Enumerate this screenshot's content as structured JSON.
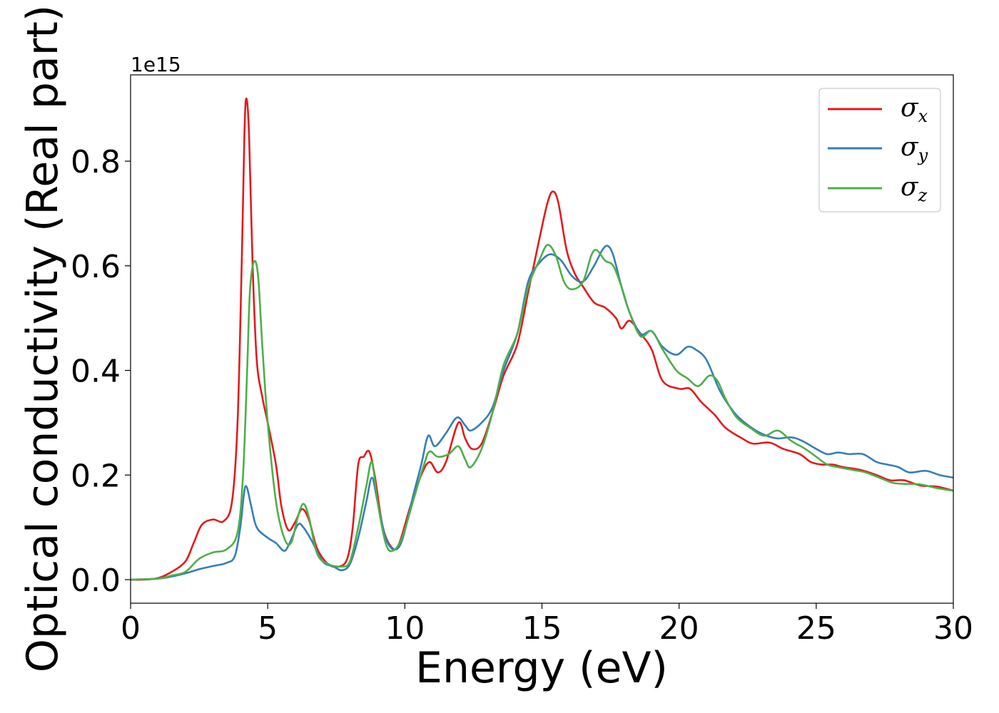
{
  "chart_data": {
    "type": "line",
    "xlabel": "Energy (eV)",
    "ylabel": "Optical conductivity (Real part)",
    "y_offset_label": "1e15",
    "xlim": [
      0,
      30
    ],
    "ylim": [
      -0.045,
      0.965
    ],
    "xticks": [
      0,
      5,
      10,
      15,
      20,
      25,
      30
    ],
    "yticks": [
      0.0,
      0.2,
      0.4,
      0.6,
      0.8
    ],
    "xtick_labels": [
      "0",
      "5",
      "10",
      "15",
      "20",
      "25",
      "30"
    ],
    "ytick_labels": [
      "0.0",
      "0.2",
      "0.4",
      "0.6",
      "0.8"
    ],
    "grid": false,
    "legend": {
      "placement": "top-right"
    },
    "series": [
      {
        "name": "σx",
        "symbol": "σ",
        "subscript": "x",
        "color": "#e41a1c",
        "points": [
          [
            0,
            0
          ],
          [
            0.5,
            0
          ],
          [
            1,
            0.003
          ],
          [
            1.5,
            0.015
          ],
          [
            2,
            0.035
          ],
          [
            2.3,
            0.07
          ],
          [
            2.6,
            0.105
          ],
          [
            3,
            0.115
          ],
          [
            3.4,
            0.112
          ],
          [
            3.7,
            0.15
          ],
          [
            3.9,
            0.3
          ],
          [
            4.05,
            0.6
          ],
          [
            4.15,
            0.85
          ],
          [
            4.22,
            0.92
          ],
          [
            4.32,
            0.85
          ],
          [
            4.45,
            0.6
          ],
          [
            4.6,
            0.42
          ],
          [
            4.8,
            0.35
          ],
          [
            5,
            0.3
          ],
          [
            5.3,
            0.22
          ],
          [
            5.5,
            0.14
          ],
          [
            5.75,
            0.095
          ],
          [
            6,
            0.11
          ],
          [
            6.25,
            0.135
          ],
          [
            6.5,
            0.115
          ],
          [
            6.8,
            0.06
          ],
          [
            7.2,
            0.03
          ],
          [
            7.6,
            0.025
          ],
          [
            7.9,
            0.04
          ],
          [
            8.1,
            0.1
          ],
          [
            8.3,
            0.22
          ],
          [
            8.5,
            0.235
          ],
          [
            8.7,
            0.245
          ],
          [
            8.9,
            0.2
          ],
          [
            9.2,
            0.1
          ],
          [
            9.55,
            0.06
          ],
          [
            9.8,
            0.07
          ],
          [
            10.2,
            0.14
          ],
          [
            10.6,
            0.2
          ],
          [
            10.9,
            0.225
          ],
          [
            11.2,
            0.205
          ],
          [
            11.5,
            0.225
          ],
          [
            11.95,
            0.3
          ],
          [
            12.2,
            0.27
          ],
          [
            12.45,
            0.25
          ],
          [
            12.8,
            0.26
          ],
          [
            13.2,
            0.32
          ],
          [
            13.6,
            0.39
          ],
          [
            14.1,
            0.45
          ],
          [
            14.5,
            0.55
          ],
          [
            14.9,
            0.65
          ],
          [
            15.2,
            0.72
          ],
          [
            15.4,
            0.742
          ],
          [
            15.6,
            0.72
          ],
          [
            15.9,
            0.63
          ],
          [
            16.2,
            0.585
          ],
          [
            16.5,
            0.56
          ],
          [
            16.9,
            0.53
          ],
          [
            17.3,
            0.52
          ],
          [
            17.7,
            0.5
          ],
          [
            17.9,
            0.48
          ],
          [
            18.2,
            0.495
          ],
          [
            18.6,
            0.47
          ],
          [
            19,
            0.44
          ],
          [
            19.4,
            0.38
          ],
          [
            20,
            0.365
          ],
          [
            20.4,
            0.365
          ],
          [
            20.8,
            0.34
          ],
          [
            21.3,
            0.315
          ],
          [
            21.7,
            0.29
          ],
          [
            22.3,
            0.27
          ],
          [
            22.7,
            0.26
          ],
          [
            23.3,
            0.262
          ],
          [
            23.8,
            0.25
          ],
          [
            24.4,
            0.24
          ],
          [
            24.8,
            0.225
          ],
          [
            25.2,
            0.22
          ],
          [
            25.6,
            0.22
          ],
          [
            26,
            0.215
          ],
          [
            26.6,
            0.21
          ],
          [
            27.2,
            0.2
          ],
          [
            27.7,
            0.19
          ],
          [
            28.2,
            0.19
          ],
          [
            28.8,
            0.18
          ],
          [
            29.4,
            0.178
          ],
          [
            30,
            0.17
          ]
        ]
      },
      {
        "name": "σy",
        "symbol": "σ",
        "subscript": "y",
        "color": "#377eb8",
        "points": [
          [
            0,
            0
          ],
          [
            1,
            0.002
          ],
          [
            1.5,
            0.006
          ],
          [
            2,
            0.012
          ],
          [
            2.5,
            0.02
          ],
          [
            3,
            0.026
          ],
          [
            3.5,
            0.032
          ],
          [
            3.8,
            0.045
          ],
          [
            4,
            0.1
          ],
          [
            4.15,
            0.17
          ],
          [
            4.25,
            0.175
          ],
          [
            4.4,
            0.14
          ],
          [
            4.6,
            0.1
          ],
          [
            5,
            0.08
          ],
          [
            5.3,
            0.07
          ],
          [
            5.6,
            0.055
          ],
          [
            5.8,
            0.07
          ],
          [
            6.1,
            0.105
          ],
          [
            6.3,
            0.1
          ],
          [
            6.6,
            0.075
          ],
          [
            7,
            0.035
          ],
          [
            7.4,
            0.025
          ],
          [
            7.7,
            0.018
          ],
          [
            8,
            0.03
          ],
          [
            8.3,
            0.08
          ],
          [
            8.6,
            0.15
          ],
          [
            8.8,
            0.195
          ],
          [
            9,
            0.15
          ],
          [
            9.3,
            0.08
          ],
          [
            9.6,
            0.058
          ],
          [
            9.9,
            0.075
          ],
          [
            10.3,
            0.16
          ],
          [
            10.6,
            0.22
          ],
          [
            10.85,
            0.275
          ],
          [
            11.1,
            0.255
          ],
          [
            11.5,
            0.28
          ],
          [
            11.9,
            0.31
          ],
          [
            12.2,
            0.295
          ],
          [
            12.4,
            0.285
          ],
          [
            12.8,
            0.3
          ],
          [
            13.2,
            0.33
          ],
          [
            13.6,
            0.4
          ],
          [
            14.1,
            0.47
          ],
          [
            14.5,
            0.57
          ],
          [
            14.9,
            0.605
          ],
          [
            15.3,
            0.622
          ],
          [
            15.7,
            0.61
          ],
          [
            16.1,
            0.58
          ],
          [
            16.5,
            0.57
          ],
          [
            16.9,
            0.6
          ],
          [
            17.2,
            0.63
          ],
          [
            17.4,
            0.638
          ],
          [
            17.6,
            0.62
          ],
          [
            17.9,
            0.56
          ],
          [
            18.2,
            0.51
          ],
          [
            18.6,
            0.47
          ],
          [
            19,
            0.475
          ],
          [
            19.4,
            0.445
          ],
          [
            19.9,
            0.43
          ],
          [
            20.3,
            0.445
          ],
          [
            20.6,
            0.44
          ],
          [
            21,
            0.42
          ],
          [
            21.5,
            0.36
          ],
          [
            22,
            0.32
          ],
          [
            22.4,
            0.3
          ],
          [
            22.8,
            0.285
          ],
          [
            23.2,
            0.275
          ],
          [
            23.6,
            0.27
          ],
          [
            24.1,
            0.272
          ],
          [
            24.5,
            0.265
          ],
          [
            25,
            0.25
          ],
          [
            25.4,
            0.24
          ],
          [
            25.8,
            0.243
          ],
          [
            26.2,
            0.24
          ],
          [
            26.7,
            0.24
          ],
          [
            27.2,
            0.225
          ],
          [
            27.6,
            0.22
          ],
          [
            28,
            0.215
          ],
          [
            28.4,
            0.205
          ],
          [
            29,
            0.208
          ],
          [
            29.5,
            0.2
          ],
          [
            30,
            0.195
          ]
        ]
      },
      {
        "name": "σz",
        "symbol": "σ",
        "subscript": "z",
        "color": "#4daf4a",
        "points": [
          [
            0,
            0
          ],
          [
            1,
            0.002
          ],
          [
            1.5,
            0.008
          ],
          [
            2,
            0.015
          ],
          [
            2.5,
            0.04
          ],
          [
            3,
            0.052
          ],
          [
            3.5,
            0.058
          ],
          [
            3.9,
            0.09
          ],
          [
            4.1,
            0.2
          ],
          [
            4.25,
            0.4
          ],
          [
            4.35,
            0.55
          ],
          [
            4.5,
            0.608
          ],
          [
            4.65,
            0.58
          ],
          [
            4.8,
            0.45
          ],
          [
            5,
            0.3
          ],
          [
            5.3,
            0.15
          ],
          [
            5.6,
            0.08
          ],
          [
            5.85,
            0.07
          ],
          [
            6.1,
            0.12
          ],
          [
            6.3,
            0.145
          ],
          [
            6.5,
            0.12
          ],
          [
            6.8,
            0.05
          ],
          [
            7.2,
            0.03
          ],
          [
            7.7,
            0.025
          ],
          [
            8,
            0.035
          ],
          [
            8.3,
            0.1
          ],
          [
            8.6,
            0.18
          ],
          [
            8.8,
            0.225
          ],
          [
            9,
            0.15
          ],
          [
            9.3,
            0.07
          ],
          [
            9.55,
            0.055
          ],
          [
            9.9,
            0.08
          ],
          [
            10.3,
            0.15
          ],
          [
            10.7,
            0.22
          ],
          [
            10.9,
            0.245
          ],
          [
            11.2,
            0.235
          ],
          [
            11.6,
            0.24
          ],
          [
            11.95,
            0.255
          ],
          [
            12.2,
            0.23
          ],
          [
            12.4,
            0.215
          ],
          [
            12.8,
            0.25
          ],
          [
            13.2,
            0.32
          ],
          [
            13.6,
            0.41
          ],
          [
            14.1,
            0.47
          ],
          [
            14.5,
            0.56
          ],
          [
            14.9,
            0.61
          ],
          [
            15.2,
            0.64
          ],
          [
            15.5,
            0.62
          ],
          [
            15.8,
            0.57
          ],
          [
            16.1,
            0.555
          ],
          [
            16.5,
            0.57
          ],
          [
            16.8,
            0.62
          ],
          [
            17,
            0.63
          ],
          [
            17.3,
            0.61
          ],
          [
            17.6,
            0.6
          ],
          [
            17.9,
            0.56
          ],
          [
            18.2,
            0.51
          ],
          [
            18.6,
            0.465
          ],
          [
            19,
            0.475
          ],
          [
            19.4,
            0.44
          ],
          [
            19.9,
            0.4
          ],
          [
            20.3,
            0.385
          ],
          [
            20.7,
            0.37
          ],
          [
            21.1,
            0.39
          ],
          [
            21.4,
            0.38
          ],
          [
            21.7,
            0.345
          ],
          [
            22.1,
            0.31
          ],
          [
            22.6,
            0.29
          ],
          [
            23.1,
            0.275
          ],
          [
            23.6,
            0.285
          ],
          [
            24.1,
            0.265
          ],
          [
            24.6,
            0.25
          ],
          [
            25,
            0.235
          ],
          [
            25.4,
            0.22
          ],
          [
            25.8,
            0.215
          ],
          [
            26.3,
            0.21
          ],
          [
            26.8,
            0.205
          ],
          [
            27.3,
            0.195
          ],
          [
            27.8,
            0.185
          ],
          [
            28.3,
            0.183
          ],
          [
            28.8,
            0.182
          ],
          [
            29.4,
            0.175
          ],
          [
            30,
            0.17
          ]
        ]
      }
    ]
  }
}
